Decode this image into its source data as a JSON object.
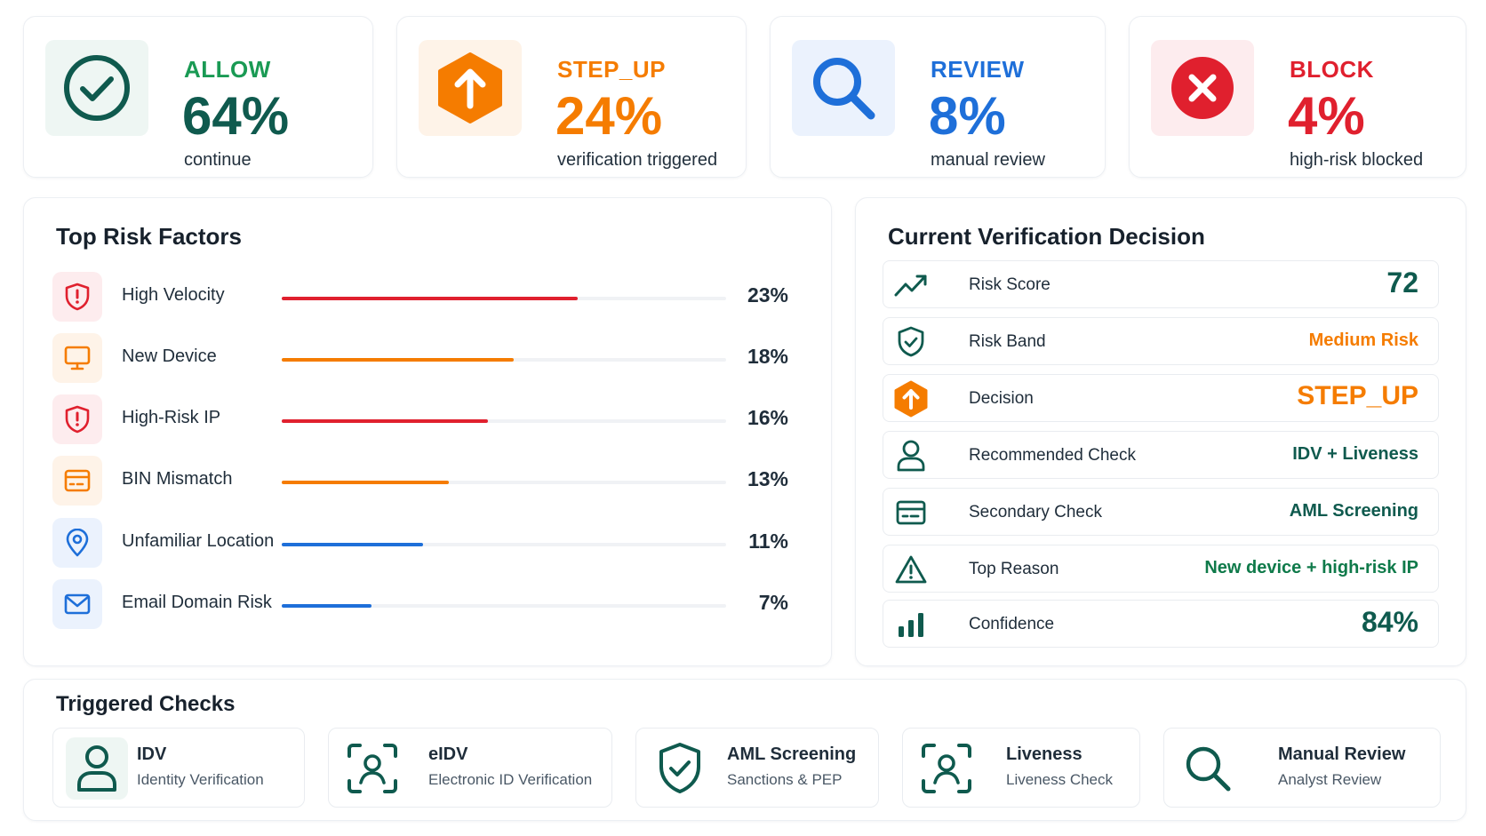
{
  "colors": {
    "allow": "#0f5a4e",
    "step_up": "#f57c00",
    "review": "#1e6fd9",
    "block": "#e0202e",
    "teal": "#0f5a4e",
    "orange": "#f57c00",
    "blue": "#1e6fd9",
    "red": "#e0202e"
  },
  "summary": [
    {
      "label": "ALLOW",
      "value": "64%",
      "sub": "continue",
      "icon": "check-circle-icon"
    },
    {
      "label": "STEP_UP",
      "value": "24%",
      "sub": "verification triggered",
      "icon": "arrow-up-hexagon-icon"
    },
    {
      "label": "REVIEW",
      "value": "8%",
      "sub": "manual review",
      "icon": "search-icon"
    },
    {
      "label": "BLOCK",
      "value": "4%",
      "sub": "high-risk blocked",
      "icon": "x-circle-icon"
    }
  ],
  "risk_factors": {
    "title": "Top Risk Factors",
    "items": [
      {
        "name": "High Velocity",
        "percent": "23%",
        "share": 0.23,
        "icon": "shield-alert-icon",
        "color": "#e0202e"
      },
      {
        "name": "New Device",
        "percent": "18%",
        "share": 0.18,
        "icon": "monitor-icon",
        "color": "#f57c00"
      },
      {
        "name": "High-Risk IP",
        "percent": "16%",
        "share": 0.16,
        "icon": "shield-alert-icon",
        "color": "#e0202e"
      },
      {
        "name": "BIN Mismatch",
        "percent": "13%",
        "share": 0.13,
        "icon": "card-icon",
        "color": "#f57c00"
      },
      {
        "name": "Unfamiliar Location",
        "percent": "11%",
        "share": 0.11,
        "icon": "location-pin-icon",
        "color": "#1e6fd9"
      },
      {
        "name": "Email Domain Risk",
        "percent": "7%",
        "share": 0.07,
        "icon": "mail-icon",
        "color": "#1e6fd9"
      }
    ]
  },
  "decision": {
    "title": "Current Verification Decision",
    "rows": [
      {
        "label": "Risk Score",
        "value": "72",
        "icon": "trend-up-icon"
      },
      {
        "label": "Risk Band",
        "value": "Medium Risk",
        "icon": "shield-check-icon"
      },
      {
        "label": "Decision",
        "value": "STEP_UP",
        "icon": "arrow-up-hexagon-icon"
      },
      {
        "label": "Recommended Check",
        "value": "IDV + Liveness",
        "icon": "user-icon"
      },
      {
        "label": "Secondary Check",
        "value": "AML Screening",
        "icon": "id-card-icon"
      },
      {
        "label": "Top Reason",
        "value": "New device + high-risk IP",
        "icon": "warning-icon"
      },
      {
        "label": "Confidence",
        "value": "84%",
        "icon": "bar-chart-icon"
      }
    ]
  },
  "triggered": {
    "title": "Triggered Checks",
    "items": [
      {
        "title": "IDV",
        "sub": "Identity Verification",
        "icon": "user-icon"
      },
      {
        "title": "eIDV",
        "sub": "Electronic ID Verification",
        "icon": "face-scan-icon"
      },
      {
        "title": "AML Screening",
        "sub": "Sanctions & PEP",
        "icon": "shield-check-icon"
      },
      {
        "title": "Liveness",
        "sub": "Liveness Check",
        "icon": "face-scan-icon"
      },
      {
        "title": "Manual Review",
        "sub": "Analyst Review",
        "icon": "search-icon"
      }
    ]
  }
}
